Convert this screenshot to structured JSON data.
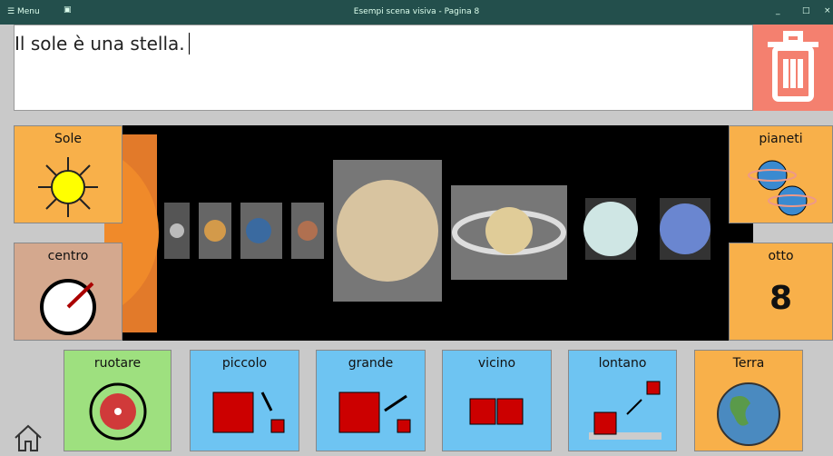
{
  "titlebar": {
    "menu": "Menu",
    "title": "Esempi scena visiva - Pagina 8"
  },
  "message": "Il sole è una stella.",
  "side_tiles": [
    {
      "label": "Sole"
    },
    {
      "label": "centro"
    },
    {
      "label": "pianeti"
    },
    {
      "label": "otto",
      "symbol": "8"
    }
  ],
  "bottom_tiles": [
    {
      "label": "ruotare"
    },
    {
      "label": "piccolo"
    },
    {
      "label": "grande"
    },
    {
      "label": "vicino"
    },
    {
      "label": "lontano"
    },
    {
      "label": "Terra"
    }
  ]
}
